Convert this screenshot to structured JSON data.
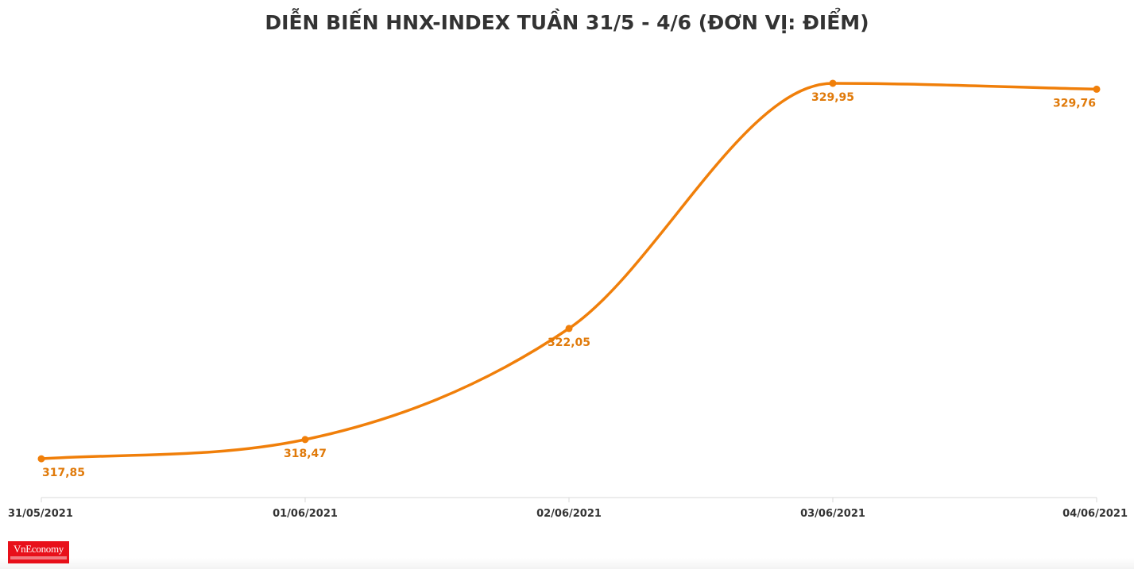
{
  "chart_data": {
    "type": "line",
    "title": "DIỄN BIẾN HNX-INDEX TUẦN 31/5 - 4/6 (ĐƠN VỊ: ĐIỂM)",
    "categories": [
      "31/05/2021",
      "01/06/2021",
      "02/06/2021",
      "03/06/2021",
      "04/06/2021"
    ],
    "series": [
      {
        "values": [
          317.85,
          318.47,
          322.05,
          329.95,
          329.76
        ],
        "labels": [
          "317,85",
          "318,47",
          "322,05",
          "329,95",
          "329,76"
        ]
      }
    ],
    "ylim": [
      316.6,
      331.1
    ],
    "grid": false,
    "legend": "none",
    "line_color": "#f07f0a",
    "label_color": "#e07a0a",
    "axis_color": "#d8d8d8"
  },
  "brand": {
    "logo_text": "VnEconomy",
    "logo_color": "#e8101a"
  }
}
